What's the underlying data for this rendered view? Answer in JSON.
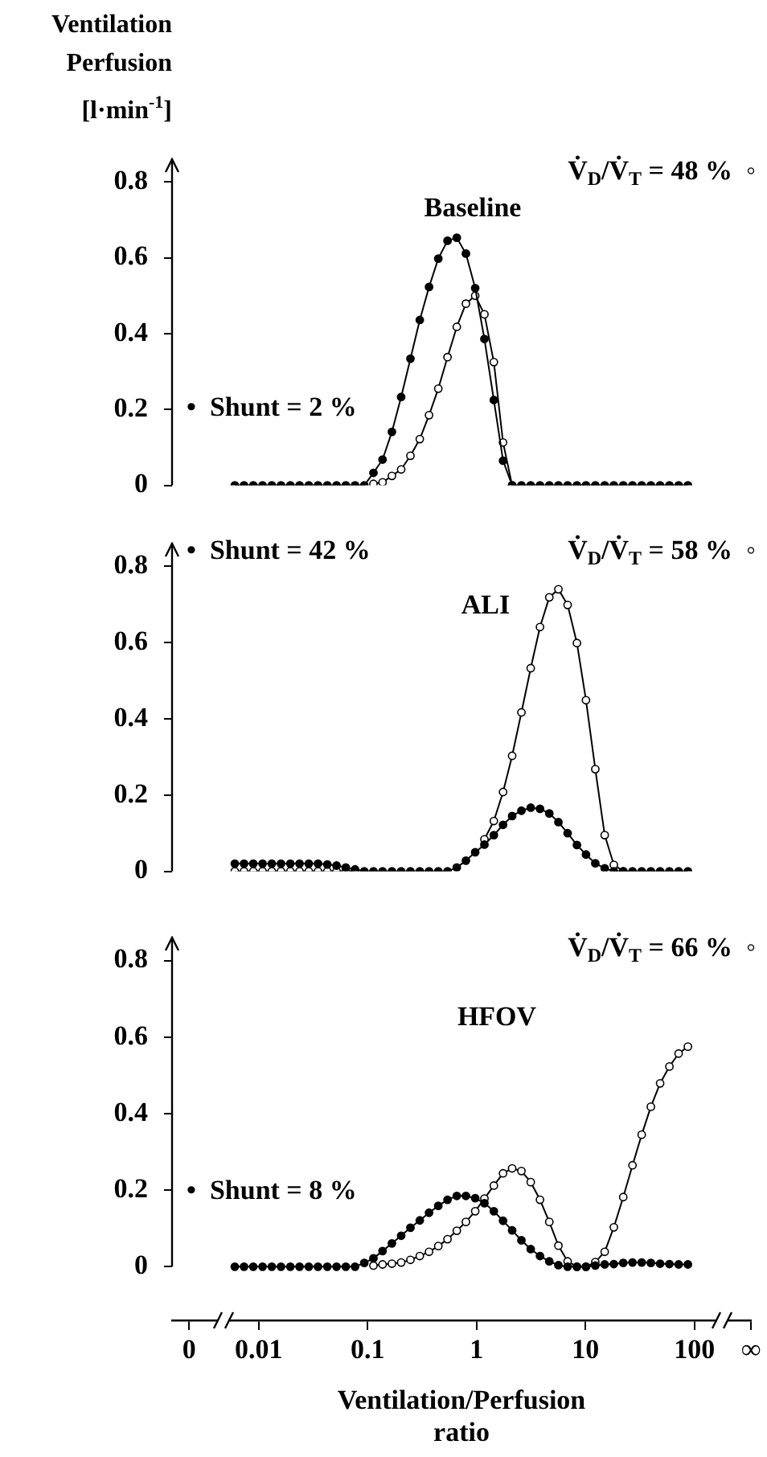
{
  "chart_data": [
    {
      "type": "line",
      "title": "Baseline",
      "log": "x",
      "ylabel": "Ventilation\nPerfusion\n[l·min$^{-1}$]",
      "marker": "circle",
      "tick_labels": "y",
      "x": [
        0.00603,
        0.00733,
        0.00891,
        0.01084,
        0.01318,
        0.016,
        0.0195,
        0.0237,
        0.0288,
        0.035,
        0.0426,
        0.0518,
        0.063,
        0.0766,
        0.0931,
        0.113,
        0.137,
        0.167,
        0.203,
        0.247,
        0.301,
        0.366,
        0.445,
        0.541,
        0.658,
        0.798,
        0.971,
        1.18,
        1.44,
        1.75,
        2.12,
        2.58,
        3.14,
        3.82,
        4.65,
        5.64,
        6.85,
        8.34,
        10.1,
        12.3,
        15,
        18.2,
        22.2,
        27,
        32.8,
        39.8,
        48.4,
        58.9,
        71.6,
        87.1
      ],
      "xlim": [
        0.0016,
        330
      ],
      "ylim": [
        0,
        0.86
      ],
      "yticks": [
        0,
        0.2,
        0.4,
        0.6,
        0.8
      ],
      "series": [
        {
          "color": "#000000",
          "values": [
            0,
            0,
            0,
            0,
            0,
            0,
            0,
            0,
            0,
            0,
            0,
            0,
            0,
            0,
            0,
            0.033,
            0.068,
            0.141,
            0.233,
            0.334,
            0.436,
            0.523,
            0.598,
            0.645,
            0.653,
            0.611,
            0.52,
            0.386,
            0.225,
            0.065,
            0,
            0,
            0,
            0,
            0,
            0,
            0,
            0,
            0,
            0,
            0,
            0,
            0,
            0,
            0,
            0,
            0,
            0,
            0,
            0
          ]
        },
        {
          "color": "#ffffff",
          "values": [
            null,
            null,
            null,
            null,
            null,
            null,
            null,
            null,
            null,
            null,
            null,
            null,
            null,
            null,
            null,
            0.004,
            0.008,
            0.025,
            0.042,
            0.078,
            0.122,
            0.185,
            0.255,
            0.338,
            0.418,
            0.479,
            0.5,
            0.451,
            0.325,
            0.113,
            0,
            null,
            null,
            null,
            null,
            null,
            null,
            null,
            null,
            null,
            null,
            null,
            null,
            null,
            null,
            null,
            null,
            null,
            null,
            null
          ]
        }
      ],
      "annotations": [
        "•  Shunt = 2 %",
        "V̇$_{D}$/V̇$_{T}$ = 48 %  ◦"
      ]
    },
    {
      "type": "line",
      "title": "ALI",
      "log": "x",
      "marker": "circle",
      "tick_labels": "y",
      "x": [
        0.00603,
        0.00733,
        0.00891,
        0.01084,
        0.01318,
        0.016,
        0.0195,
        0.0237,
        0.0288,
        0.035,
        0.0426,
        0.0518,
        0.063,
        0.0766,
        0.0931,
        0.113,
        0.137,
        0.167,
        0.203,
        0.247,
        0.301,
        0.366,
        0.445,
        0.541,
        0.658,
        0.798,
        0.971,
        1.18,
        1.44,
        1.75,
        2.12,
        2.58,
        3.14,
        3.82,
        4.65,
        5.64,
        6.85,
        8.34,
        10.1,
        12.3,
        15,
        18.2,
        22.2,
        27,
        32.8,
        39.8,
        48.4,
        58.9,
        71.6,
        87.1
      ],
      "xlim": [
        0.0016,
        330
      ],
      "ylim": [
        0,
        0.86
      ],
      "yticks": [
        0,
        0.2,
        0.4,
        0.6,
        0.8
      ],
      "series": [
        {
          "color": "#000000",
          "values": [
            0.02,
            0.02,
            0.02,
            0.02,
            0.02,
            0.02,
            0.02,
            0.02,
            0.02,
            0.02,
            0.018,
            0.015,
            0.01,
            0.005,
            0,
            0,
            0,
            0,
            0,
            0,
            0,
            0,
            0,
            0,
            0.01,
            0.028,
            0.05,
            0.07,
            0.095,
            0.122,
            0.145,
            0.159,
            0.167,
            0.164,
            0.152,
            0.129,
            0.1,
            0.069,
            0.044,
            0.021,
            0.008,
            0,
            0,
            0,
            0,
            0,
            0,
            0,
            0,
            0
          ]
        },
        {
          "color": "#ffffff",
          "values": [
            0,
            0,
            0,
            0,
            0,
            0,
            0,
            0,
            0,
            0,
            0,
            0,
            0,
            0,
            null,
            null,
            null,
            null,
            null,
            null,
            null,
            null,
            null,
            null,
            null,
            null,
            null,
            0.084,
            0.132,
            0.208,
            0.303,
            0.417,
            0.533,
            0.641,
            0.719,
            0.74,
            0.699,
            0.599,
            0.449,
            0.268,
            0.095,
            0.017,
            0,
            null,
            null,
            null,
            null,
            null,
            null,
            null
          ]
        }
      ],
      "annotations": [
        "•  Shunt = 42 %",
        "V̇$_{D}$/V̇$_{T}$ = 58 %  ◦"
      ]
    },
    {
      "type": "line",
      "title": "HFOV",
      "log": "x",
      "marker": "circle",
      "xlabel": "Ventilation/Perfusion\nratio",
      "x": [
        0.00603,
        0.00733,
        0.00891,
        0.01084,
        0.01318,
        0.016,
        0.0195,
        0.0237,
        0.0288,
        0.035,
        0.0426,
        0.0518,
        0.063,
        0.0766,
        0.0931,
        0.113,
        0.137,
        0.167,
        0.203,
        0.247,
        0.301,
        0.366,
        0.445,
        0.541,
        0.658,
        0.798,
        0.971,
        1.18,
        1.44,
        1.75,
        2.12,
        2.58,
        3.14,
        3.82,
        4.65,
        5.64,
        6.85,
        8.34,
        10.1,
        12.3,
        15,
        18.2,
        22.2,
        27,
        32.8,
        39.8,
        48.4,
        58.9,
        71.6,
        87.1
      ],
      "xlim": [
        0.0016,
        330
      ],
      "xticks": [
        {
          "value": 0.0023,
          "label": "0"
        },
        0.01,
        0.1,
        1,
        10,
        100,
        {
          "value": 330,
          "label": "∞"
        }
      ],
      "ylim": [
        -0.14,
        0.86
      ],
      "yticks": [
        0,
        0.2,
        0.4,
        0.6,
        0.8
      ],
      "series": [
        {
          "color": "#000000",
          "values": [
            0,
            0,
            0,
            0,
            0,
            0,
            0,
            0,
            0,
            0,
            0,
            0,
            0,
            0,
            0.01,
            0.022,
            0.041,
            0.061,
            0.081,
            0.102,
            0.121,
            0.141,
            0.159,
            0.175,
            0.185,
            0.185,
            0.179,
            0.166,
            0.145,
            0.12,
            0.095,
            0.069,
            0.046,
            0.028,
            0.014,
            0.004,
            0,
            0,
            0,
            0.003,
            0.006,
            0.007,
            0.01,
            0.011,
            0.011,
            0.01,
            0.008,
            0.007,
            0.006,
            0.006
          ]
        },
        {
          "color": "#ffffff",
          "values": [
            null,
            null,
            null,
            null,
            null,
            null,
            null,
            null,
            null,
            null,
            null,
            null,
            null,
            null,
            null,
            0.003,
            0.006,
            0.008,
            0.011,
            0.018,
            0.028,
            0.039,
            0.054,
            0.072,
            0.094,
            0.117,
            0.145,
            0.178,
            0.212,
            0.244,
            0.257,
            0.25,
            0.221,
            0.175,
            0.117,
            0.055,
            0.014,
            0,
            0,
            0.012,
            0.039,
            0.103,
            0.182,
            0.265,
            0.345,
            0.418,
            0.479,
            0.523,
            0.557,
            0.575
          ]
        }
      ],
      "annotations": [
        "•  Shunt = 8 %",
        "V̇$_{D}$/V̇$_{T}$ = 66 %  ◦"
      ]
    }
  ]
}
